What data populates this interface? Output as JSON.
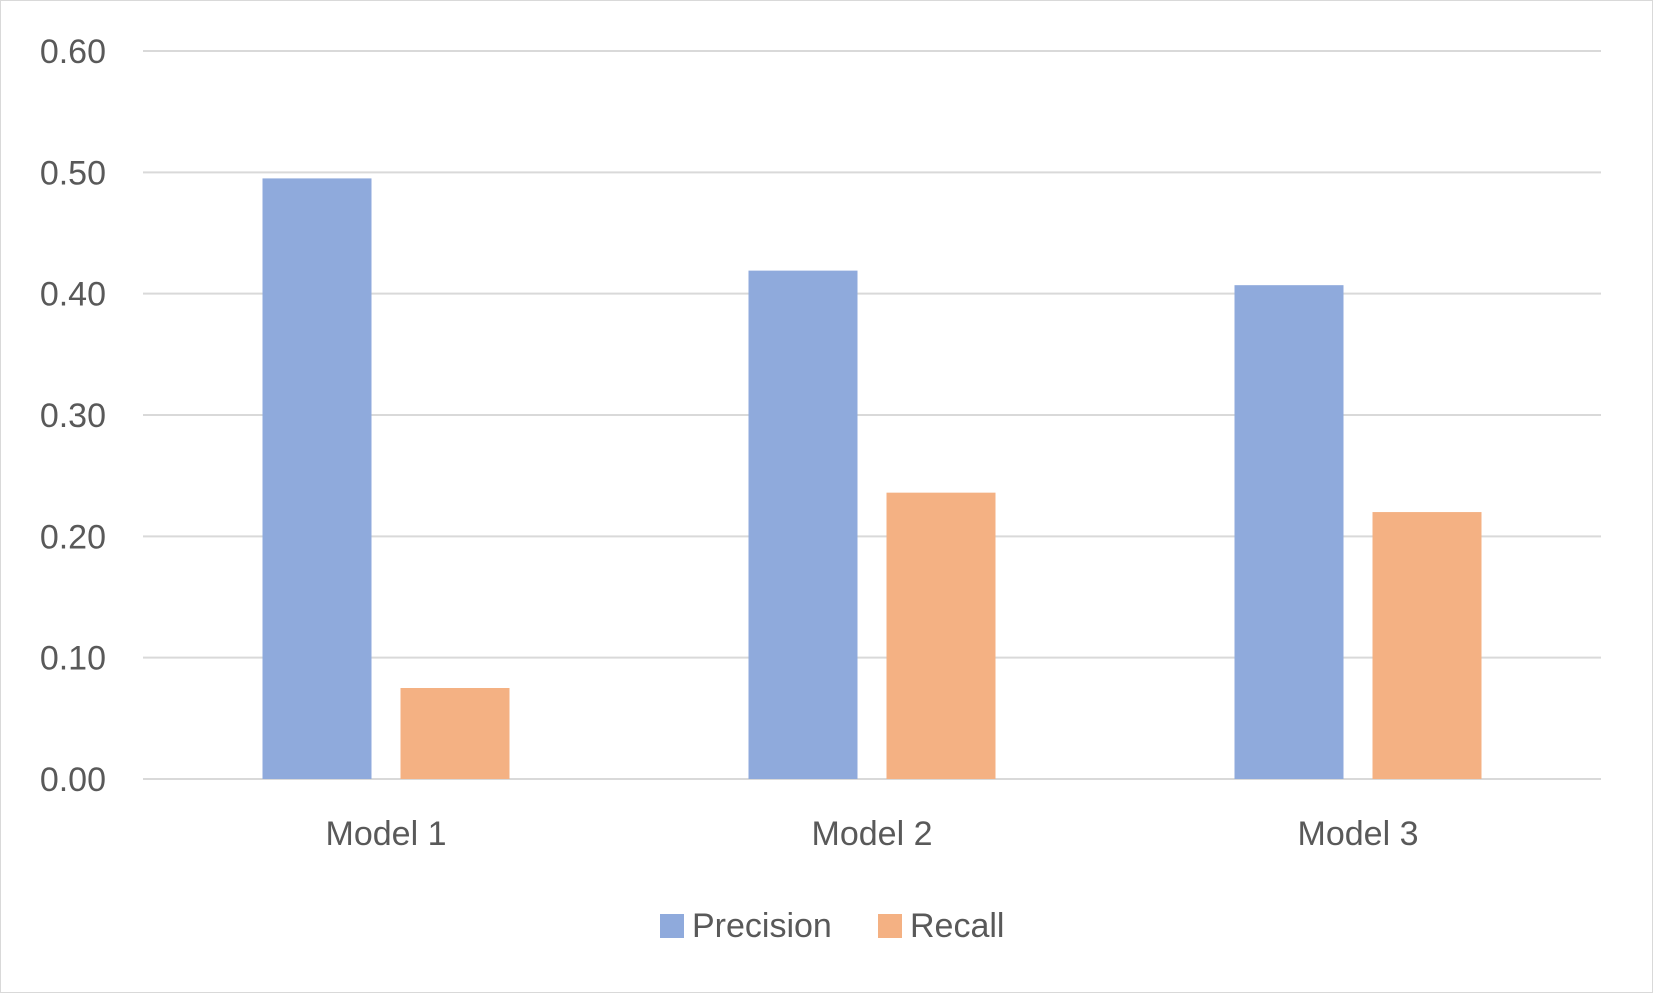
{
  "chart_data": {
    "type": "bar",
    "categories": [
      "Model 1",
      "Model 2",
      "Model 3"
    ],
    "series": [
      {
        "name": "Precision",
        "values": [
          0.495,
          0.419,
          0.407
        ],
        "color": "#8faadc"
      },
      {
        "name": "Recall",
        "values": [
          0.075,
          0.236,
          0.22
        ],
        "color": "#f4b183"
      }
    ],
    "ylim": [
      0,
      0.6
    ],
    "yticks": [
      "0.00",
      "0.10",
      "0.20",
      "0.30",
      "0.40",
      "0.50",
      "0.60"
    ],
    "grid": true,
    "legend_position": "bottom",
    "title": "",
    "xlabel": "",
    "ylabel": ""
  }
}
